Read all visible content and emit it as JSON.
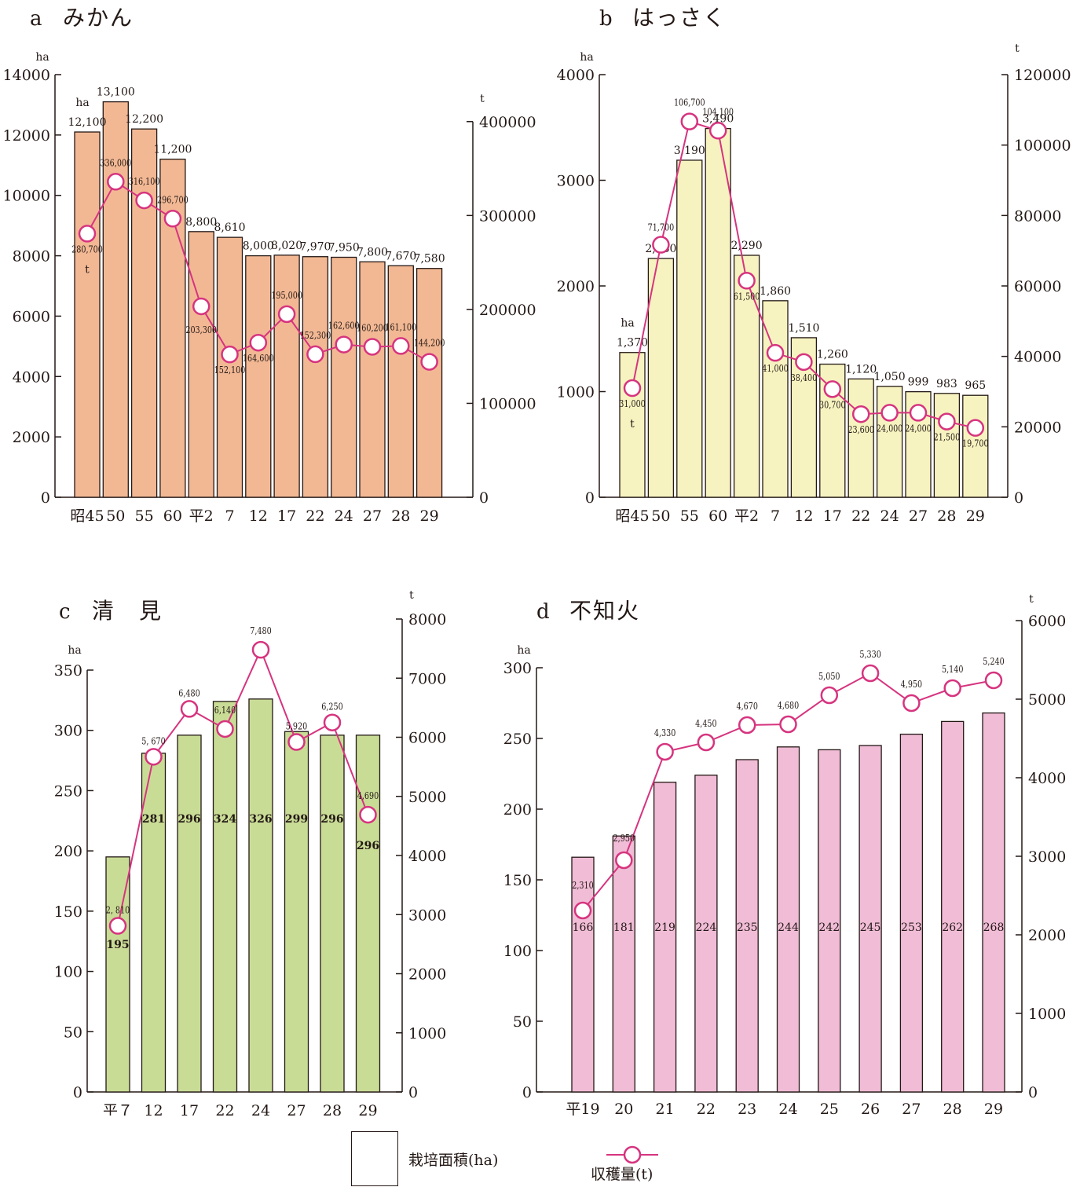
{
  "legend": {
    "area_label": "栽培面積(ha)",
    "yield_label": "収穫量(t)"
  },
  "colors": {
    "line": "#d6347f",
    "axis": "#231815",
    "mikan_bar": "#f2b894",
    "hassaku_bar": "#f7f3c0",
    "kiyomi_bar": "#c9dc96",
    "shiranui_bar": "#f0bcd6"
  },
  "chart_data": [
    {
      "id": "a",
      "type": "bar",
      "letter": "a",
      "title": "みかん",
      "categories": [
        "昭45",
        "50",
        "55",
        "60",
        "平2",
        "7",
        "12",
        "17",
        "22",
        "24",
        "27",
        "28",
        "29"
      ],
      "left_unit": "ha",
      "right_unit": "t",
      "left_ticks": [
        0,
        2000,
        4000,
        6000,
        8000,
        10000,
        12000,
        14000
      ],
      "right_ticks": [
        0,
        100000,
        200000,
        300000,
        400000
      ],
      "ylim_left": [
        0,
        14000
      ],
      "ylim_right": [
        0,
        450000
      ],
      "bar_color": "#f2b894",
      "series": [
        {
          "name": "栽培面積(ha)",
          "values": [
            12100,
            13100,
            12200,
            11200,
            8800,
            8610,
            8000,
            8020,
            7970,
            7950,
            7800,
            7670,
            7580
          ],
          "labels": [
            "12,100",
            "13,100",
            "12,200",
            "11,200",
            "8,800",
            "8,610",
            "8,000",
            "8,020",
            "7,970",
            "7,950",
            "7,800",
            "7,670",
            "7,580"
          ]
        },
        {
          "name": "収穫量(t)",
          "values": [
            280700,
            336000,
            316100,
            296700,
            203300,
            152100,
            164600,
            195000,
            152300,
            162600,
            160200,
            161100,
            144200
          ],
          "labels": [
            "280,700",
            "336,000",
            "316,100",
            "296,700",
            "203,300",
            "152,100",
            "164,600",
            "195,000",
            "152,300",
            "162,600",
            "160,200",
            "161,100",
            "144,200"
          ]
        }
      ],
      "unit_notes": [
        "ha",
        "t"
      ]
    },
    {
      "id": "b",
      "type": "bar",
      "letter": "b",
      "title": "はっさく",
      "categories": [
        "昭45",
        "50",
        "55",
        "60",
        "平2",
        "7",
        "12",
        "17",
        "22",
        "24",
        "27",
        "28",
        "29"
      ],
      "left_unit": "ha",
      "right_unit": "t",
      "left_ticks": [
        0,
        1000,
        2000,
        3000,
        4000
      ],
      "right_ticks": [
        0,
        20000,
        40000,
        60000,
        80000,
        100000,
        120000
      ],
      "ylim_left": [
        0,
        4000
      ],
      "ylim_right": [
        0,
        120000
      ],
      "bar_color": "#f7f3c0",
      "series": [
        {
          "name": "栽培面積(ha)",
          "values": [
            1370,
            2260,
            3190,
            3490,
            2290,
            1860,
            1510,
            1260,
            1120,
            1050,
            999,
            983,
            965
          ],
          "labels": [
            "1,370",
            "2,260",
            "3,190",
            "3,490",
            "2,290",
            "1,860",
            "1,510",
            "1,260",
            "1,120",
            "1,050",
            "999",
            "983",
            "965"
          ]
        },
        {
          "name": "収穫量(t)",
          "values": [
            31000,
            71700,
            106700,
            104100,
            61500,
            41000,
            38400,
            30700,
            23600,
            24000,
            24000,
            21500,
            19700
          ],
          "labels": [
            "31,000",
            "71,700",
            "106,700",
            "104,100",
            "61,500",
            "41,000",
            "38,400",
            "30,700",
            "23,600",
            "24,000",
            "24,000",
            "21,500",
            "19,700"
          ]
        }
      ],
      "unit_notes": [
        "ha",
        "t"
      ]
    },
    {
      "id": "c",
      "type": "bar",
      "letter": "c",
      "title": "清　見",
      "categories": [
        "平７",
        "12",
        "17",
        "22",
        "24",
        "27",
        "28",
        "29"
      ],
      "left_unit": "ha",
      "right_unit": "t",
      "left_ticks": [
        0,
        50,
        100,
        150,
        200,
        250,
        300,
        350
      ],
      "right_ticks": [
        0,
        1000,
        2000,
        3000,
        4000,
        5000,
        6000,
        7000,
        8000
      ],
      "ylim_left": [
        0,
        350
      ],
      "ylim_right": [
        0,
        8000
      ],
      "bar_color": "#c9dc96",
      "series": [
        {
          "name": "栽培面積(ha)",
          "values": [
            195,
            281,
            296,
            324,
            326,
            299,
            296,
            296
          ],
          "labels": [
            "195",
            "281",
            "296",
            "324",
            "326",
            "299",
            "296",
            "296"
          ]
        },
        {
          "name": "収穫量(t)",
          "values": [
            2810,
            5670,
            6480,
            6140,
            7480,
            5920,
            6250,
            4690
          ],
          "labels": [
            "2, 810",
            "5, 670",
            "6,480",
            "6,140",
            "7,480",
            "5,920",
            "6,250",
            "4,690"
          ]
        }
      ]
    },
    {
      "id": "d",
      "type": "bar",
      "letter": "d",
      "title": "不知火",
      "categories": [
        "平19",
        "20",
        "21",
        "22",
        "23",
        "24",
        "25",
        "26",
        "27",
        "28",
        "29"
      ],
      "left_unit": "ha",
      "right_unit": "t",
      "left_ticks": [
        0,
        50,
        100,
        150,
        200,
        250,
        300
      ],
      "right_ticks": [
        0,
        1000,
        2000,
        3000,
        4000,
        5000,
        6000
      ],
      "ylim_left": [
        0,
        300
      ],
      "ylim_right": [
        0,
        6000
      ],
      "bar_color": "#f0bcd6",
      "series": [
        {
          "name": "栽培面積(ha)",
          "values": [
            166,
            181,
            219,
            224,
            235,
            244,
            242,
            245,
            253,
            262,
            268
          ],
          "labels": [
            "166",
            "181",
            "219",
            "224",
            "235",
            "244",
            "242",
            "245",
            "253",
            "262",
            "268"
          ]
        },
        {
          "name": "収穫量(t)",
          "values": [
            2310,
            2950,
            4330,
            4450,
            4670,
            4680,
            5050,
            5330,
            4950,
            5140,
            5240
          ],
          "labels": [
            "2,310",
            "2,950",
            "4,330",
            "4,450",
            "4,670",
            "4,680",
            "5,050",
            "5,330",
            "4,950",
            "5,140",
            "5,240"
          ]
        }
      ]
    }
  ]
}
